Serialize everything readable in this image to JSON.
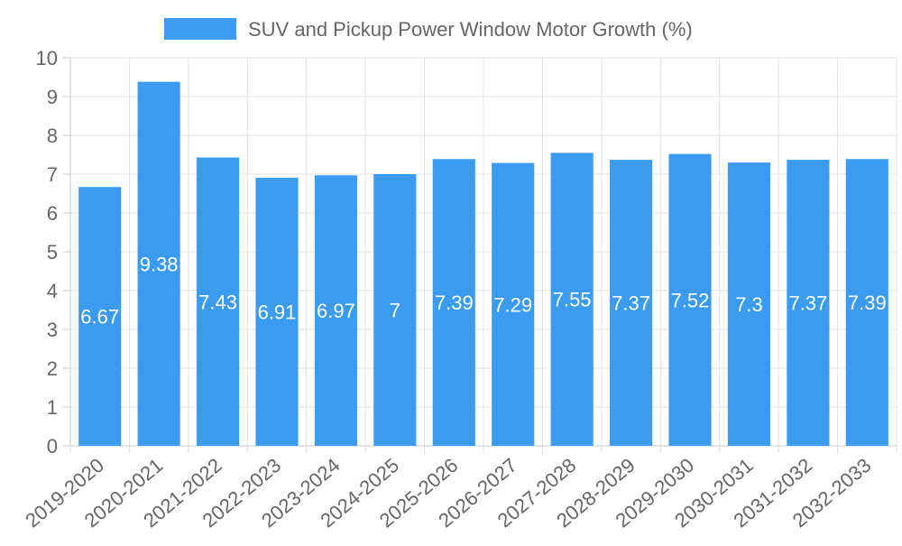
{
  "chart_data": {
    "type": "bar",
    "categories": [
      "2019-2020",
      "2020-2021",
      "2021-2022",
      "2022-2023",
      "2023-2024",
      "2024-2025",
      "2025-2026",
      "2026-2027",
      "2027-2028",
      "2028-2029",
      "2029-2030",
      "2030-2031",
      "2031-2032",
      "2032-2033"
    ],
    "series": [
      {
        "name": "SUV and Pickup Power Window Motor Growth (%)",
        "values": [
          6.67,
          9.38,
          7.43,
          6.91,
          6.97,
          7,
          7.39,
          7.29,
          7.55,
          7.37,
          7.52,
          7.3,
          7.37,
          7.39
        ],
        "color": "#3a9bf0"
      }
    ],
    "ylim": [
      0,
      10
    ],
    "yticks": [
      0,
      1,
      2,
      3,
      4,
      5,
      6,
      7,
      8,
      9,
      10
    ],
    "grid": true,
    "legend_position": "top-center",
    "data_labels": true
  }
}
